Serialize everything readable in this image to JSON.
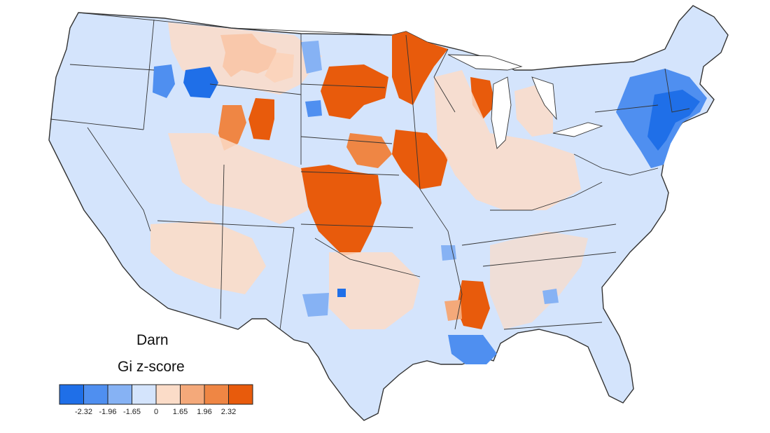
{
  "map": {
    "title": "Darn",
    "subtitle": "Gi z-score",
    "legend": {
      "colors": [
        "#1f6fe8",
        "#4f8ff0",
        "#86b2f4",
        "#d4e4fc",
        "#fbdcc8",
        "#f4a97a",
        "#ef8644",
        "#e85b0c"
      ],
      "ticks": [
        "-2.32",
        "-1.96",
        "-1.65",
        "0",
        "1.65",
        "1.96",
        "2.32"
      ]
    },
    "palette": {
      "land": "#d4e4fc",
      "outline": "#333333"
    }
  }
}
